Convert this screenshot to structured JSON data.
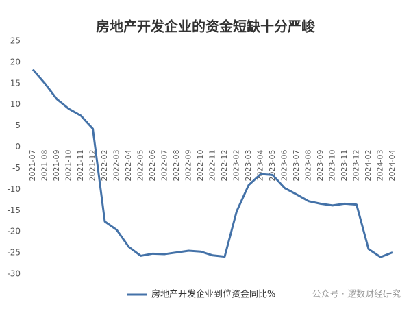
{
  "chart_data": {
    "type": "line",
    "title": "房地产开发企业的资金短缺十分严峻",
    "categories": [
      "2021-07",
      "2021-08",
      "2021-09",
      "2021-10",
      "2021-11",
      "2021-12",
      "2022-02",
      "2022-03",
      "2022-04",
      "2022-05",
      "2022-06",
      "2022-07",
      "2022-08",
      "2022-09",
      "2022-10",
      "2022-11",
      "2022-12",
      "2023-02",
      "2023-03",
      "2023-04",
      "2023-05",
      "2023-06",
      "2023-07",
      "2023-08",
      "2023-09",
      "2023-10",
      "2023-11",
      "2023-12",
      "2024-02",
      "2024-03",
      "2024-04"
    ],
    "series": [
      {
        "name": "房地产开发企业到位资金同比%",
        "color": "#4472a8",
        "values": [
          18.3,
          15,
          11.3,
          9,
          7.4,
          4.3,
          -17.6,
          -19.6,
          -23.6,
          -25.7,
          -25.2,
          -25.3,
          -24.9,
          -24.5,
          -24.7,
          -25.6,
          -25.9,
          -15.2,
          -9,
          -6.4,
          -6.6,
          -9.7,
          -11.2,
          -12.8,
          -13.4,
          -13.8,
          -13.4,
          -13.6,
          -24.1,
          -26,
          -24.9
        ]
      }
    ],
    "ylim": [
      -30,
      25
    ],
    "yticks": [
      -30,
      -25,
      -20,
      -15,
      -10,
      -5,
      0,
      5,
      10,
      15,
      20,
      25
    ],
    "grid": false,
    "legend": "bottom",
    "watermark": "公众号 · 逻数财经研究"
  }
}
